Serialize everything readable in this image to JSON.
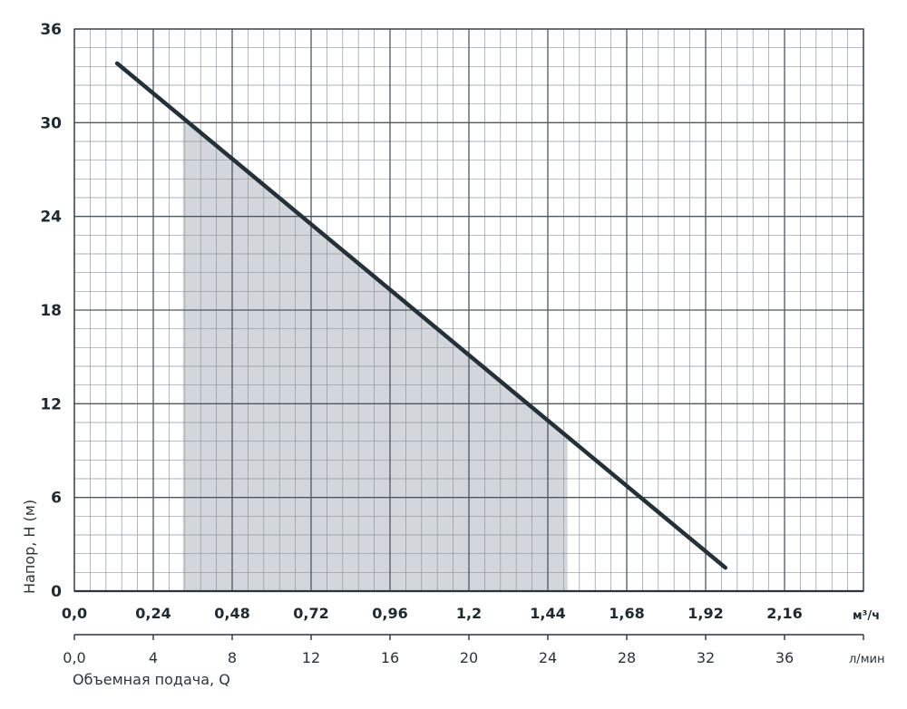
{
  "chart_data": {
    "type": "line",
    "title": "",
    "ylabel": "Напор, H (м)",
    "xlabel": "Объемная подача, Q",
    "x_unit_primary": "м³/ч",
    "x_unit_secondary": "л/мин",
    "ylim": [
      0,
      36
    ],
    "xlim": [
      0,
      2.4
    ],
    "y_ticks": [
      "0",
      "6",
      "12",
      "18",
      "24",
      "30",
      "36"
    ],
    "x_ticks_primary": [
      "0,0",
      "0,24",
      "0,48",
      "0,72",
      "0,96",
      "1,2",
      "1,44",
      "1,68",
      "1,92",
      "2,16"
    ],
    "x_ticks_secondary": [
      "0,0",
      "4",
      "8",
      "12",
      "16",
      "20",
      "24",
      "28",
      "32",
      "36"
    ],
    "grid": true,
    "series": [
      {
        "x": [
          0.13,
          1.98
        ],
        "y": [
          33.8,
          1.5
        ],
        "color": "#23323a"
      }
    ],
    "operating_range": {
      "x": [
        0.33,
        1.5
      ],
      "color": "#d3d7dc"
    }
  }
}
